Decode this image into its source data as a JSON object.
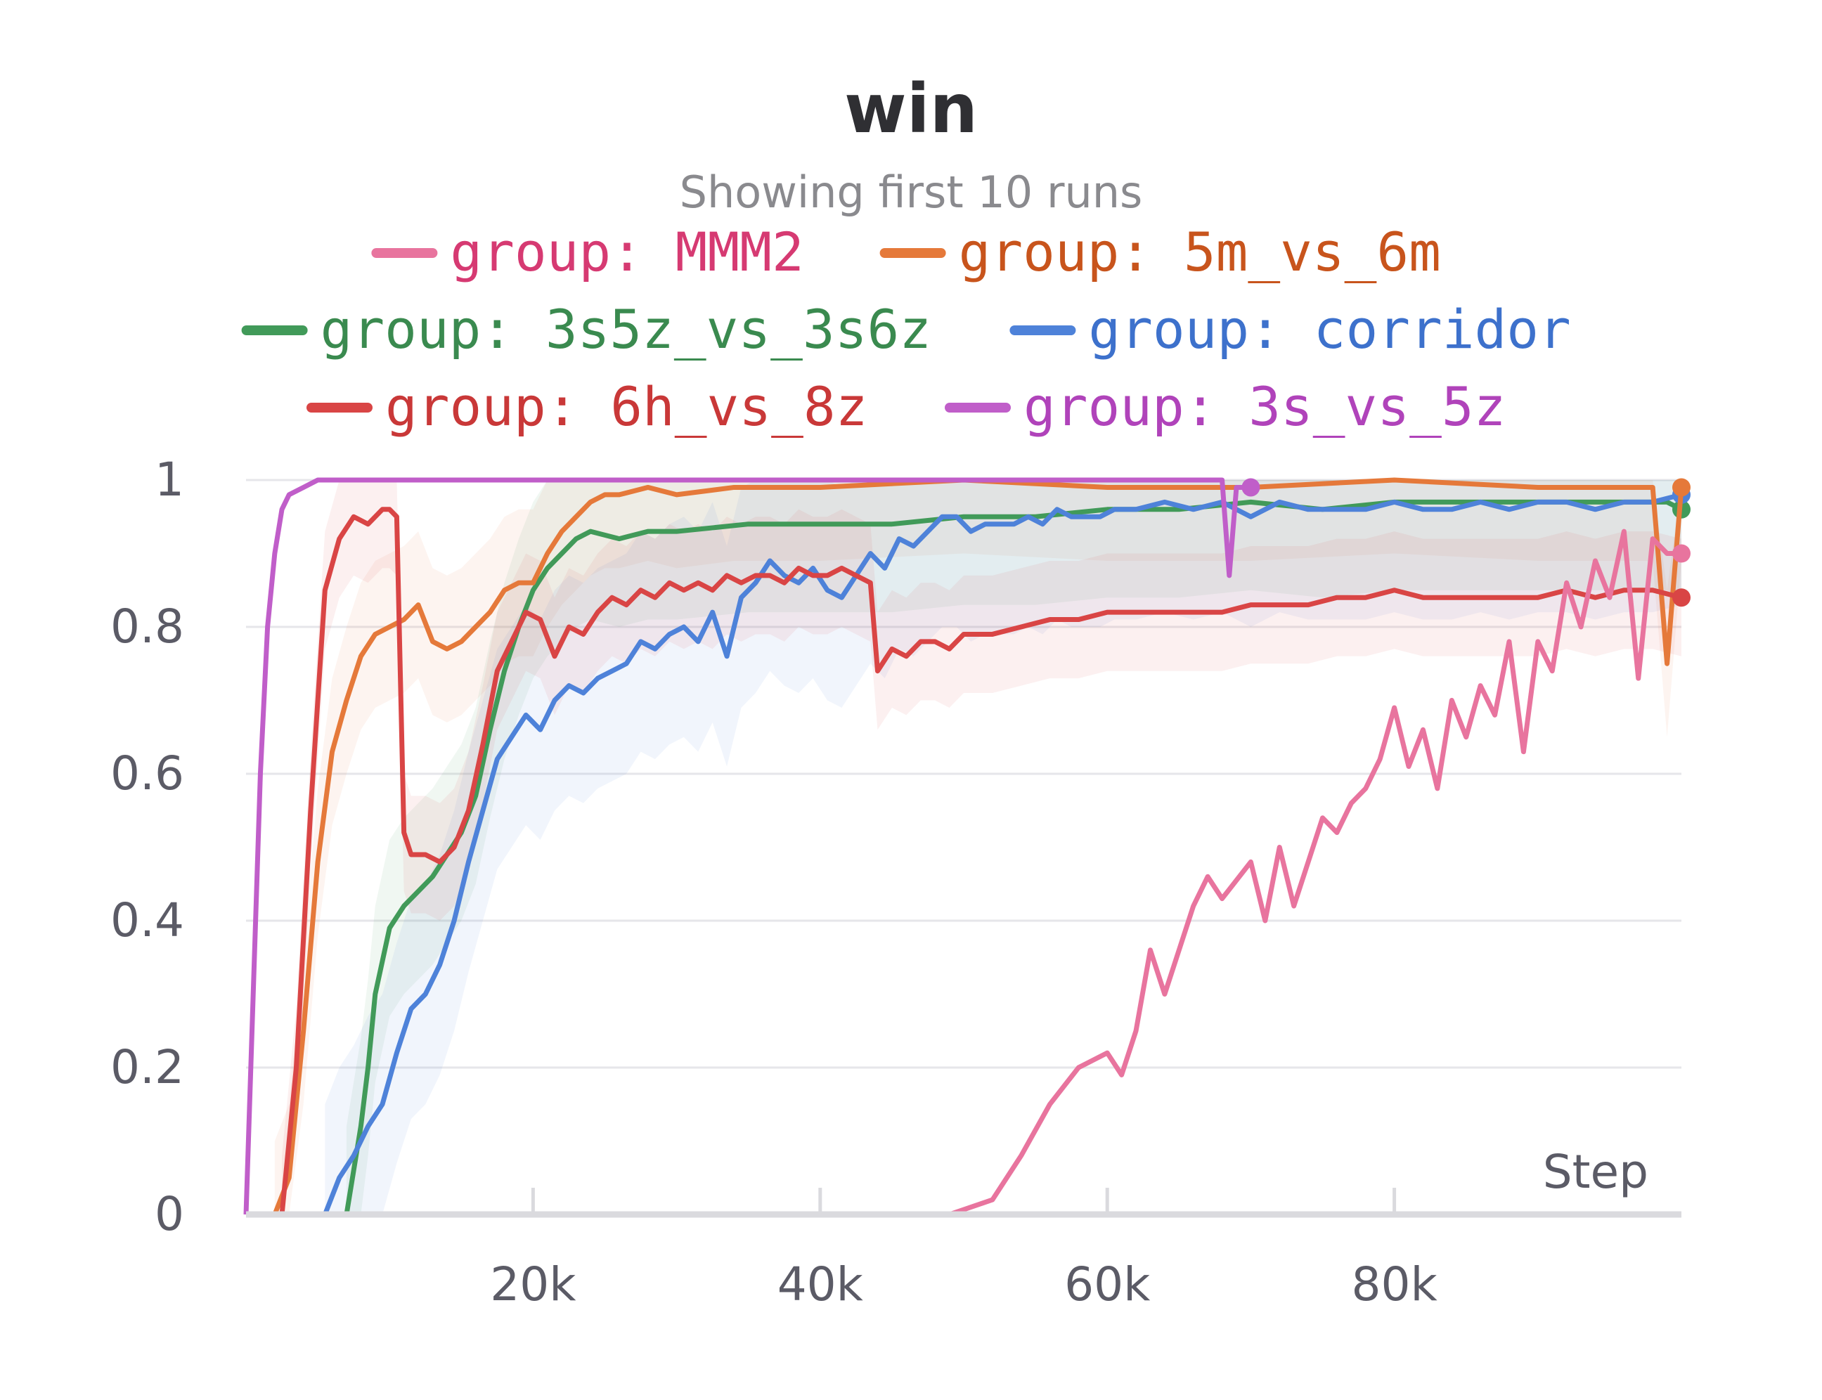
{
  "chart_data": {
    "type": "line",
    "title": "win",
    "subtitle": "Showing first 10 runs",
    "xlabel": "Step",
    "ylabel": "",
    "xlim": [
      0,
      100000
    ],
    "ylim": [
      0,
      1
    ],
    "x_ticks": [
      {
        "value": 20000,
        "label": "20k"
      },
      {
        "value": 40000,
        "label": "40k"
      },
      {
        "value": 60000,
        "label": "60k"
      },
      {
        "value": 80000,
        "label": "80k"
      }
    ],
    "y_ticks": [
      {
        "value": 0,
        "label": "0"
      },
      {
        "value": 0.2,
        "label": "0.2"
      },
      {
        "value": 0.4,
        "label": "0.4"
      },
      {
        "value": 0.6,
        "label": "0.6"
      },
      {
        "value": 0.8,
        "label": "0.8"
      },
      {
        "value": 1,
        "label": "1"
      }
    ],
    "grid": true,
    "legend_position": "top",
    "series": [
      {
        "name": "group: MMM2",
        "color": "#e8749e",
        "label_color": "#d63a72",
        "x": [
          49000,
          52000,
          54000,
          56000,
          58000,
          60000,
          61000,
          62000,
          63000,
          64000,
          65000,
          66000,
          67000,
          68000,
          70000,
          71000,
          72000,
          73000,
          74000,
          75000,
          76000,
          77000,
          78000,
          79000,
          80000,
          81000,
          82000,
          83000,
          84000,
          85000,
          86000,
          87000,
          88000,
          89000,
          90000,
          91000,
          92000,
          93000,
          94000,
          95000,
          96000,
          97000,
          98000,
          99000,
          100000
        ],
        "values": [
          0.0,
          0.02,
          0.08,
          0.15,
          0.2,
          0.22,
          0.19,
          0.25,
          0.36,
          0.3,
          0.36,
          0.42,
          0.46,
          0.43,
          0.48,
          0.4,
          0.5,
          0.42,
          0.48,
          0.54,
          0.52,
          0.56,
          0.58,
          0.62,
          0.69,
          0.61,
          0.66,
          0.58,
          0.7,
          0.65,
          0.72,
          0.68,
          0.78,
          0.63,
          0.78,
          0.74,
          0.86,
          0.8,
          0.89,
          0.84,
          0.93,
          0.73,
          0.92,
          0.9,
          0.9
        ]
      },
      {
        "name": "group: 5m_vs_6m",
        "color": "#e5793a",
        "label_color": "#c8541c",
        "x": [
          2000,
          3000,
          4000,
          5000,
          6000,
          7000,
          8000,
          9000,
          10000,
          11000,
          12000,
          13000,
          14000,
          15000,
          16000,
          17000,
          18000,
          19000,
          20000,
          21000,
          22000,
          23000,
          24000,
          25000,
          26000,
          28000,
          30000,
          34000,
          40000,
          50000,
          60000,
          70000,
          80000,
          90000,
          98000,
          99000,
          100000
        ],
        "values": [
          0.0,
          0.05,
          0.25,
          0.48,
          0.63,
          0.7,
          0.76,
          0.79,
          0.8,
          0.81,
          0.83,
          0.78,
          0.77,
          0.78,
          0.8,
          0.82,
          0.85,
          0.86,
          0.86,
          0.9,
          0.93,
          0.95,
          0.97,
          0.98,
          0.98,
          0.99,
          0.98,
          0.99,
          0.99,
          1.0,
          0.99,
          0.99,
          1.0,
          0.99,
          0.99,
          0.75,
          0.99
        ]
      },
      {
        "name": "group: 3s5z_vs_3s6z",
        "color": "#419a59",
        "label_color": "#3a8a4f",
        "x": [
          7000,
          8000,
          8500,
          9000,
          10000,
          11000,
          12000,
          13000,
          14000,
          15000,
          16000,
          17000,
          18000,
          19000,
          20000,
          21000,
          22000,
          23000,
          24000,
          26000,
          28000,
          30000,
          35000,
          40000,
          45000,
          50000,
          55000,
          60000,
          65000,
          70000,
          75000,
          80000,
          85000,
          90000,
          95000,
          99000,
          100000
        ],
        "values": [
          0.0,
          0.12,
          0.2,
          0.3,
          0.39,
          0.42,
          0.44,
          0.46,
          0.49,
          0.52,
          0.57,
          0.66,
          0.74,
          0.8,
          0.85,
          0.88,
          0.9,
          0.92,
          0.93,
          0.92,
          0.93,
          0.93,
          0.94,
          0.94,
          0.94,
          0.95,
          0.95,
          0.96,
          0.96,
          0.97,
          0.96,
          0.97,
          0.97,
          0.97,
          0.97,
          0.97,
          0.96
        ]
      },
      {
        "name": "group: corridor",
        "color": "#4e82d9",
        "label_color": "#3d71cc",
        "x": [
          5500,
          6500,
          7500,
          8500,
          9500,
          10500,
          11500,
          12500,
          13500,
          14500,
          15500,
          16500,
          17500,
          18500,
          19500,
          20500,
          21500,
          22500,
          23500,
          24500,
          25500,
          26500,
          27500,
          28500,
          29500,
          30500,
          31500,
          32500,
          33500,
          34500,
          35500,
          36500,
          37500,
          38500,
          39500,
          40500,
          41500,
          42500,
          43500,
          44500,
          45500,
          46500,
          47500,
          48500,
          49500,
          50500,
          51500,
          52500,
          53500,
          54500,
          55500,
          56500,
          57500,
          58500,
          59500,
          60500,
          62000,
          64000,
          66000,
          68000,
          70000,
          72000,
          74000,
          76000,
          78000,
          80000,
          82000,
          84000,
          86000,
          88000,
          90000,
          92000,
          94000,
          96000,
          98000,
          100000
        ],
        "values": [
          0.0,
          0.05,
          0.08,
          0.12,
          0.15,
          0.22,
          0.28,
          0.3,
          0.34,
          0.4,
          0.48,
          0.55,
          0.62,
          0.65,
          0.68,
          0.66,
          0.7,
          0.72,
          0.71,
          0.73,
          0.74,
          0.75,
          0.78,
          0.77,
          0.79,
          0.8,
          0.78,
          0.82,
          0.76,
          0.84,
          0.86,
          0.89,
          0.87,
          0.86,
          0.88,
          0.85,
          0.84,
          0.87,
          0.9,
          0.88,
          0.92,
          0.91,
          0.93,
          0.95,
          0.95,
          0.93,
          0.94,
          0.94,
          0.94,
          0.95,
          0.94,
          0.96,
          0.95,
          0.95,
          0.95,
          0.96,
          0.96,
          0.97,
          0.96,
          0.97,
          0.95,
          0.97,
          0.96,
          0.96,
          0.96,
          0.97,
          0.96,
          0.96,
          0.97,
          0.96,
          0.97,
          0.97,
          0.96,
          0.97,
          0.97,
          0.98
        ]
      },
      {
        "name": "group: 6h_vs_8z",
        "color": "#d94545",
        "label_color": "#c93838",
        "x": [
          2500,
          3500,
          4500,
          5500,
          6500,
          7500,
          8500,
          9500,
          10000,
          10500,
          11000,
          11500,
          12500,
          13500,
          14500,
          15500,
          16500,
          17500,
          18500,
          19500,
          20500,
          21500,
          22500,
          23500,
          24500,
          25500,
          26500,
          27500,
          28500,
          29500,
          30500,
          31500,
          32500,
          33500,
          34500,
          35500,
          36500,
          37500,
          38500,
          39500,
          40500,
          41500,
          42500,
          43500,
          44000,
          45000,
          46000,
          47000,
          48000,
          49000,
          50000,
          52000,
          54000,
          56000,
          58000,
          60000,
          62000,
          64000,
          66000,
          68000,
          70000,
          72000,
          74000,
          76000,
          78000,
          80000,
          82000,
          84000,
          86000,
          88000,
          90000,
          92000,
          94000,
          96000,
          98000,
          100000
        ],
        "values": [
          0.0,
          0.2,
          0.55,
          0.85,
          0.92,
          0.95,
          0.94,
          0.96,
          0.96,
          0.95,
          0.52,
          0.49,
          0.49,
          0.48,
          0.5,
          0.55,
          0.64,
          0.74,
          0.78,
          0.82,
          0.81,
          0.76,
          0.8,
          0.79,
          0.82,
          0.84,
          0.83,
          0.85,
          0.84,
          0.86,
          0.85,
          0.86,
          0.85,
          0.87,
          0.86,
          0.87,
          0.87,
          0.86,
          0.88,
          0.87,
          0.87,
          0.88,
          0.87,
          0.86,
          0.74,
          0.77,
          0.76,
          0.78,
          0.78,
          0.77,
          0.79,
          0.79,
          0.8,
          0.81,
          0.81,
          0.82,
          0.82,
          0.82,
          0.82,
          0.82,
          0.83,
          0.83,
          0.83,
          0.84,
          0.84,
          0.85,
          0.84,
          0.84,
          0.84,
          0.84,
          0.84,
          0.85,
          0.84,
          0.85,
          0.85,
          0.84
        ]
      },
      {
        "name": "group: 3s_vs_5z",
        "color": "#c05ec9",
        "label_color": "#b043ba",
        "x": [
          0,
          500,
          1000,
          1500,
          2000,
          2500,
          3000,
          4000,
          5000,
          6000,
          8000,
          10000,
          15000,
          20000,
          30000,
          40000,
          50000,
          60000,
          68000,
          68500,
          69000,
          70000
        ],
        "values": [
          0.0,
          0.3,
          0.6,
          0.8,
          0.9,
          0.96,
          0.98,
          0.99,
          1.0,
          1.0,
          1.0,
          1.0,
          1.0,
          1.0,
          1.0,
          1.0,
          1.0,
          1.0,
          1.0,
          0.87,
          0.99,
          0.99
        ]
      }
    ]
  }
}
